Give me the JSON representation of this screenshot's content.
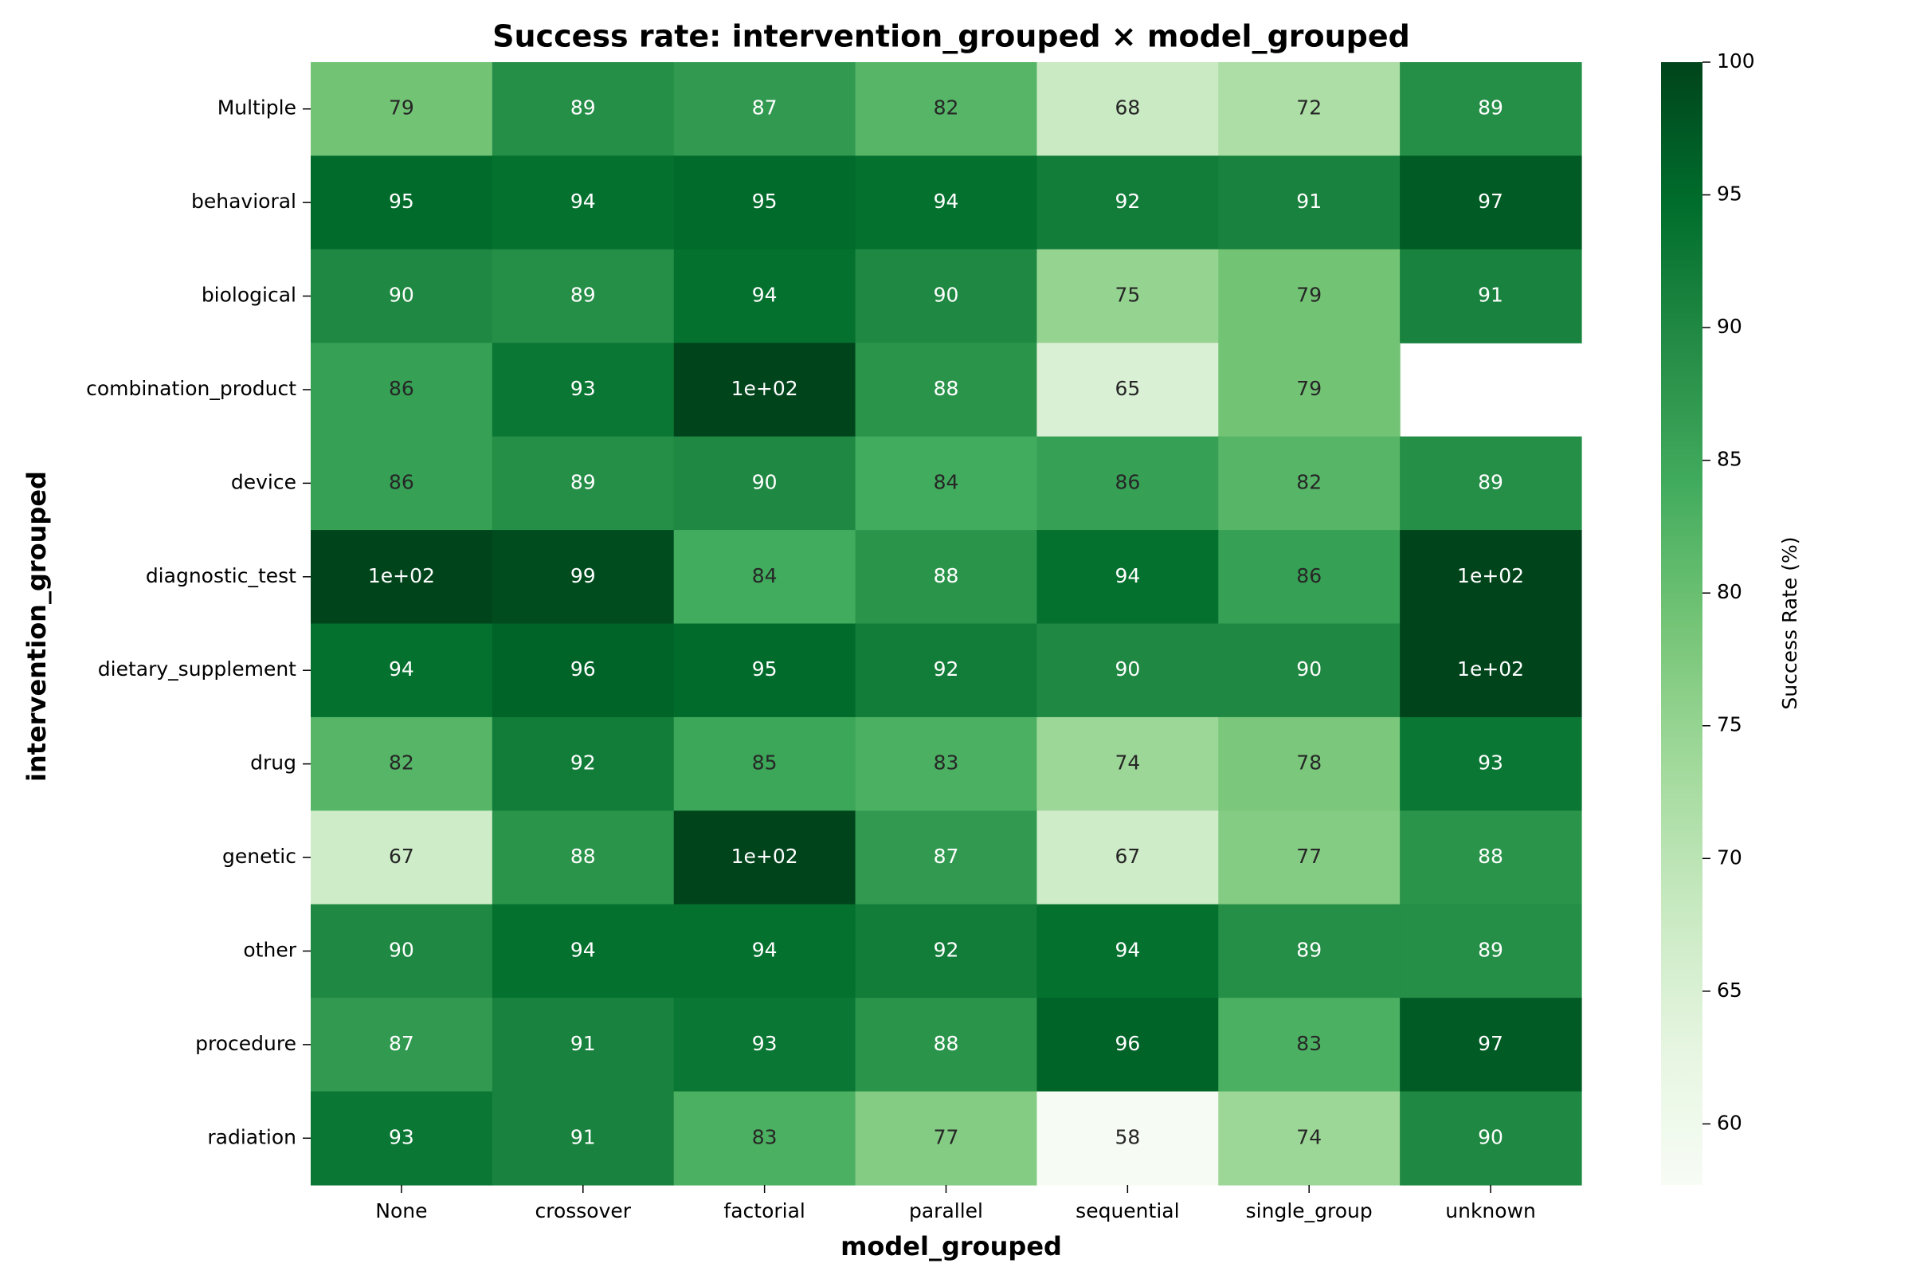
{
  "chart_data": {
    "type": "heatmap",
    "title": "Success rate: intervention_grouped × model_grouped",
    "xlabel": "model_grouped",
    "ylabel": "intervention_grouped",
    "colorbar_label": "Success Rate (%)",
    "colormap": "Greens",
    "vmin": 57.7,
    "vmax": 100,
    "colorbar_ticks": [
      60,
      65,
      70,
      75,
      80,
      85,
      90,
      95,
      100
    ],
    "columns": [
      "None",
      "crossover",
      "factorial",
      "parallel",
      "sequential",
      "single_group",
      "unknown"
    ],
    "rows": [
      "Multiple",
      "behavioral",
      "biological",
      "combination_product",
      "device",
      "diagnostic_test",
      "dietary_supplement",
      "drug",
      "genetic",
      "other",
      "procedure",
      "radiation"
    ],
    "values": [
      [
        79,
        89,
        87,
        82,
        68,
        72,
        89
      ],
      [
        95,
        94,
        95,
        94,
        92,
        91,
        97
      ],
      [
        90,
        89,
        94,
        90,
        75,
        79,
        91
      ],
      [
        86,
        93,
        100,
        88,
        65,
        79,
        null
      ],
      [
        86,
        89,
        90,
        84,
        86,
        82,
        89
      ],
      [
        100,
        99,
        84,
        88,
        94,
        86,
        100
      ],
      [
        94,
        96,
        95,
        92,
        90,
        90,
        100
      ],
      [
        82,
        92,
        85,
        83,
        74,
        78,
        93
      ],
      [
        67,
        88,
        100,
        87,
        67,
        77,
        88
      ],
      [
        90,
        94,
        94,
        92,
        94,
        89,
        89
      ],
      [
        87,
        91,
        93,
        88,
        96,
        83,
        97
      ],
      [
        93,
        91,
        83,
        77,
        58,
        74,
        90
      ]
    ],
    "labels": [
      [
        "79",
        "89",
        "87",
        "82",
        "68",
        "72",
        "89"
      ],
      [
        "95",
        "94",
        "95",
        "94",
        "92",
        "91",
        "97"
      ],
      [
        "90",
        "89",
        "94",
        "90",
        "75",
        "79",
        "91"
      ],
      [
        "86",
        "93",
        "1e+02",
        "88",
        "65",
        "79",
        null
      ],
      [
        "86",
        "89",
        "90",
        "84",
        "86",
        "82",
        "89"
      ],
      [
        "1e+02",
        "99",
        "84",
        "88",
        "94",
        "86",
        "1e+02"
      ],
      [
        "94",
        "96",
        "95",
        "92",
        "90",
        "90",
        "1e+02"
      ],
      [
        "82",
        "92",
        "85",
        "83",
        "74",
        "78",
        "93"
      ],
      [
        "67",
        "88",
        "1e+02",
        "87",
        "67",
        "77",
        "88"
      ],
      [
        "90",
        "94",
        "94",
        "92",
        "94",
        "89",
        "89"
      ],
      [
        "87",
        "91",
        "93",
        "88",
        "96",
        "83",
        "97"
      ],
      [
        "93",
        "91",
        "83",
        "77",
        "58",
        "74",
        "90"
      ]
    ]
  }
}
